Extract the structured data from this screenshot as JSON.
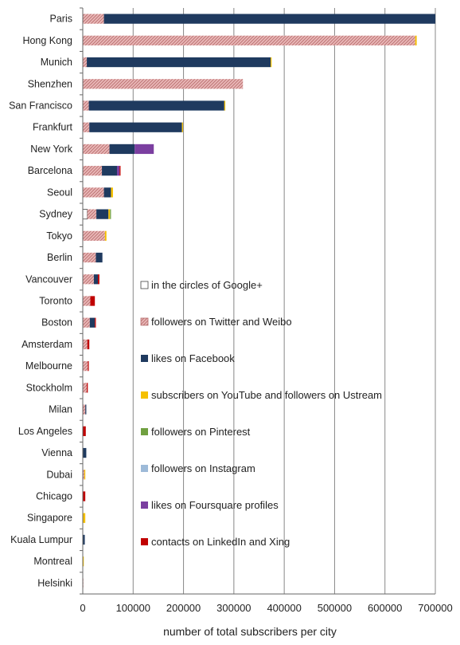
{
  "chart_data": {
    "type": "bar",
    "orientation": "horizontal",
    "stacked": true,
    "title": "",
    "xlabel": "number of total subscribers per city",
    "ylabel": "",
    "xlim": [
      0,
      700000
    ],
    "x_ticks": [
      "0",
      "100000",
      "200000",
      "300000",
      "400000",
      "500000",
      "600000",
      "700000"
    ],
    "x_tick_values": [
      0,
      100000,
      200000,
      300000,
      400000,
      500000,
      600000,
      700000
    ],
    "grid": "vertical",
    "legend_placement": "inside-center",
    "categories": [
      "Paris",
      "Hong Kong",
      "Munich",
      "Shenzhen",
      "San Francisco",
      "Frankfurt",
      "New York",
      "Barcelona",
      "Seoul",
      "Sydney",
      "Tokyo",
      "Berlin",
      "Vancouver",
      "Toronto",
      "Boston",
      "Amsterdam",
      "Melbourne",
      "Stockholm",
      "Milan",
      "Los Angeles",
      "Vienna",
      "Dubai",
      "Chicago",
      "Singapore",
      "Kuala Lumpur",
      "Montreal",
      "Helsinki"
    ],
    "series": [
      {
        "name": "in the circles of Google+",
        "color": "#ffffff",
        "pattern": "none",
        "values": [
          0,
          0,
          0,
          0,
          0,
          0,
          0,
          0,
          0,
          9000,
          0,
          0,
          0,
          0,
          0,
          0,
          0,
          0,
          0,
          0,
          0,
          0,
          0,
          0,
          0,
          0,
          0
        ]
      },
      {
        "name": "followers on Twitter and Weibo",
        "color": "#e2a3a3",
        "pattern": "hatch",
        "values": [
          42000,
          660000,
          8000,
          318000,
          12000,
          13000,
          53000,
          38000,
          42000,
          18000,
          44000,
          26000,
          22000,
          15000,
          14000,
          9000,
          10000,
          8000,
          5000,
          0,
          0,
          3000,
          0,
          0,
          0,
          0,
          1000
        ]
      },
      {
        "name": "likes on Facebook",
        "color": "#1f3a5f",
        "pattern": "none",
        "values": [
          658000,
          0,
          365000,
          0,
          269000,
          184000,
          50000,
          30000,
          14000,
          24000,
          0,
          13000,
          8000,
          0,
          10000,
          0,
          0,
          0,
          2000,
          0,
          7000,
          0,
          0,
          0,
          4000,
          0,
          0
        ]
      },
      {
        "name": "subscribers on YouTube and followers on Ustream",
        "color": "#f5c000",
        "pattern": "none",
        "values": [
          0,
          3000,
          2000,
          0,
          2000,
          2000,
          0,
          0,
          4000,
          3000,
          3000,
          0,
          0,
          0,
          0,
          0,
          0,
          0,
          0,
          0,
          0,
          2000,
          0,
          5000,
          0,
          2000,
          0
        ]
      },
      {
        "name": "followers on Pinterest",
        "color": "#70a040",
        "pattern": "none",
        "values": [
          0,
          0,
          0,
          0,
          0,
          0,
          0,
          0,
          0,
          2000,
          0,
          0,
          0,
          0,
          0,
          0,
          0,
          0,
          0,
          0,
          0,
          0,
          0,
          0,
          0,
          0,
          0
        ]
      },
      {
        "name": "followers on Instagram",
        "color": "#9dbad8",
        "pattern": "none",
        "values": [
          0,
          0,
          0,
          0,
          0,
          0,
          0,
          0,
          0,
          0,
          0,
          0,
          0,
          0,
          0,
          0,
          0,
          0,
          0,
          0,
          0,
          0,
          0,
          0,
          0,
          0,
          0
        ]
      },
      {
        "name": "likes on Foursquare profiles",
        "color": "#7b3fa0",
        "pattern": "none",
        "values": [
          0,
          0,
          0,
          0,
          0,
          0,
          38000,
          5000,
          0,
          0,
          0,
          0,
          0,
          0,
          0,
          0,
          0,
          0,
          0,
          0,
          0,
          0,
          0,
          0,
          0,
          0,
          0
        ]
      },
      {
        "name": "contacts on LinkedIn and Xing",
        "color": "#c00000",
        "pattern": "none",
        "values": [
          0,
          0,
          0,
          0,
          0,
          0,
          0,
          2000,
          0,
          0,
          0,
          0,
          3000,
          9000,
          2000,
          4000,
          2000,
          2000,
          0,
          6000,
          0,
          0,
          5000,
          0,
          0,
          0,
          0
        ]
      }
    ]
  }
}
